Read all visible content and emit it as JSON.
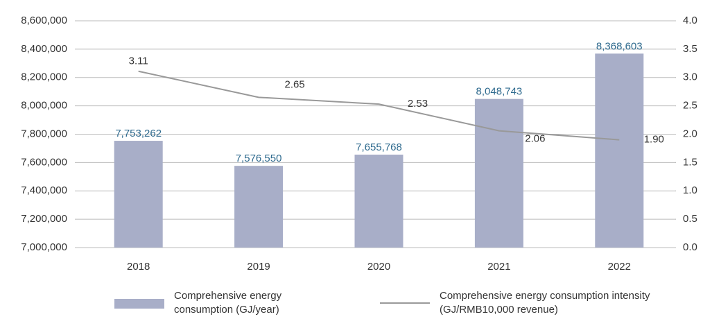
{
  "chart_data": {
    "type": "bar",
    "categories": [
      "2018",
      "2019",
      "2020",
      "2021",
      "2022"
    ],
    "series": [
      {
        "name": "Comprehensive energy consumption (GJ/year)",
        "type": "bar",
        "color": "#a8aec8",
        "values": [
          7753262,
          7576550,
          7655768,
          8048743,
          8368603
        ],
        "value_labels": [
          "7,753,262",
          "7,576,550",
          "7,655,768",
          "8,048,743",
          "8,368,603"
        ]
      },
      {
        "name": "Comprehensive energy consumption intensity (GJ/RMB10,000 revenue)",
        "type": "line",
        "axis": "y2",
        "color": "#999999",
        "values": [
          3.11,
          2.65,
          2.53,
          2.06,
          1.9
        ],
        "value_labels": [
          "3.11",
          "2.65",
          "2.53",
          "2.06",
          "1.90"
        ]
      }
    ],
    "ylim": [
      7000000,
      8600000
    ],
    "yticks": [
      {
        "value": 7000000,
        "label": "7,000,000"
      },
      {
        "value": 7200000,
        "label": "7,200,000"
      },
      {
        "value": 7400000,
        "label": "7,400,000"
      },
      {
        "value": 7600000,
        "label": "7,600,000"
      },
      {
        "value": 7800000,
        "label": "7,800,000"
      },
      {
        "value": 8000000,
        "label": "8,000,000"
      },
      {
        "value": 8200000,
        "label": "8,200,000"
      },
      {
        "value": 8400000,
        "label": "8,400,000"
      },
      {
        "value": 8600000,
        "label": "8,600,000"
      }
    ],
    "y2lim": [
      0,
      4
    ],
    "y2ticks": [
      {
        "value": 0,
        "label": "0.0"
      },
      0.5,
      {
        "value": 1,
        "label": "1.0"
      },
      1.5,
      {
        "value": 2,
        "label": "2.0"
      },
      2.5,
      {
        "value": 3,
        "label": "3.0"
      },
      3.5,
      {
        "value": 4,
        "label": "4.0"
      }
    ],
    "grid": true,
    "legend": "bottom"
  }
}
